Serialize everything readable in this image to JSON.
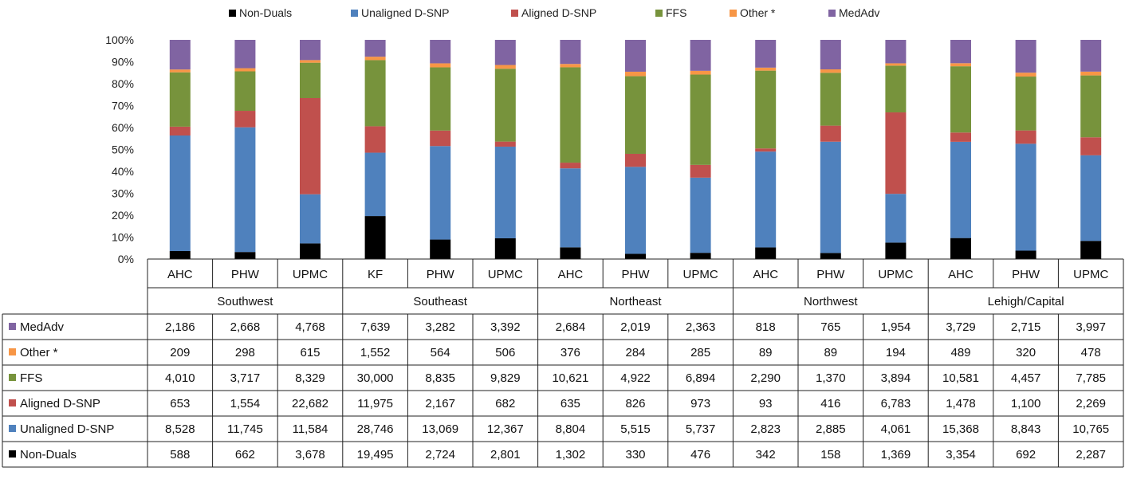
{
  "chart_data": {
    "type": "bar",
    "stacked": "percent",
    "yticks": [
      "0%",
      "10%",
      "20%",
      "30%",
      "40%",
      "50%",
      "60%",
      "70%",
      "80%",
      "90%",
      "100%"
    ],
    "ylim": [
      0,
      100
    ],
    "legend_position": "top",
    "grid": false,
    "groups": [
      {
        "name": "Southwest",
        "categories": [
          "AHC",
          "PHW",
          "UPMC"
        ]
      },
      {
        "name": "Southeast",
        "categories": [
          "KF",
          "PHW",
          "UPMC"
        ]
      },
      {
        "name": "Northeast",
        "categories": [
          "AHC",
          "PHW",
          "UPMC"
        ]
      },
      {
        "name": "Northwest",
        "categories": [
          "AHC",
          "PHW",
          "UPMC"
        ]
      },
      {
        "name": "Lehigh/Capital",
        "categories": [
          "AHC",
          "PHW",
          "UPMC"
        ]
      }
    ],
    "series": [
      {
        "name": "Non-Duals",
        "color": "#000000",
        "values": [
          588,
          662,
          3678,
          19495,
          2724,
          2801,
          1302,
          330,
          476,
          342,
          158,
          1369,
          3354,
          692,
          2287
        ],
        "labels": [
          "588",
          "662",
          "3,678",
          "19,495",
          "2,724",
          "2,801",
          "1,302",
          "330",
          "476",
          "342",
          "158",
          "1,369",
          "3,354",
          "692",
          "2,287"
        ]
      },
      {
        "name": "Unaligned D-SNP",
        "color": "#4f81bd",
        "values": [
          8528,
          11745,
          11584,
          28746,
          13069,
          12367,
          8804,
          5515,
          5737,
          2823,
          2885,
          4061,
          15368,
          8843,
          10765
        ],
        "labels": [
          "8,528",
          "11,745",
          "11,584",
          "28,746",
          "13,069",
          "12,367",
          "8,804",
          "5,515",
          "5,737",
          "2,823",
          "2,885",
          "4,061",
          "15,368",
          "8,843",
          "10,765"
        ]
      },
      {
        "name": "Aligned D-SNP",
        "color": "#c0504d",
        "values": [
          653,
          1554,
          22682,
          11975,
          2167,
          682,
          635,
          826,
          973,
          93,
          416,
          6783,
          1478,
          1100,
          2269
        ],
        "labels": [
          "653",
          "1,554",
          "22,682",
          "11,975",
          "2,167",
          "682",
          "635",
          "826",
          "973",
          "93",
          "416",
          "6,783",
          "1,478",
          "1,100",
          "2,269"
        ]
      },
      {
        "name": "FFS",
        "color": "#77933c",
        "values": [
          4010,
          3717,
          8329,
          30000,
          8835,
          9829,
          10621,
          4922,
          6894,
          2290,
          1370,
          3894,
          10581,
          4457,
          7785
        ],
        "labels": [
          "4,010",
          "3,717",
          "8,329",
          "30,000",
          "8,835",
          "9,829",
          "10,621",
          "4,922",
          "6,894",
          "2,290",
          "1,370",
          "3,894",
          "10,581",
          "4,457",
          "7,785"
        ]
      },
      {
        "name": "Other *",
        "color": "#f79646",
        "values": [
          209,
          298,
          615,
          1552,
          564,
          506,
          376,
          284,
          285,
          89,
          89,
          194,
          489,
          320,
          478
        ],
        "labels": [
          "209",
          "298",
          "615",
          "1,552",
          "564",
          "506",
          "376",
          "284",
          "285",
          "89",
          "89",
          "194",
          "489",
          "320",
          "478"
        ]
      },
      {
        "name": "MedAdv",
        "color": "#8064a2",
        "values": [
          2186,
          2668,
          4768,
          7639,
          3282,
          3392,
          2684,
          2019,
          2363,
          818,
          765,
          1954,
          3729,
          2715,
          3997
        ],
        "labels": [
          "2,186",
          "2,668",
          "4,768",
          "7,639",
          "3,282",
          "3,392",
          "2,684",
          "2,019",
          "2,363",
          "818",
          "765",
          "1,954",
          "3,729",
          "2,715",
          "3,997"
        ]
      }
    ],
    "table_row_order": [
      "MedAdv",
      "Other *",
      "FFS",
      "Aligned D-SNP",
      "Unaligned D-SNP",
      "Non-Duals"
    ]
  }
}
